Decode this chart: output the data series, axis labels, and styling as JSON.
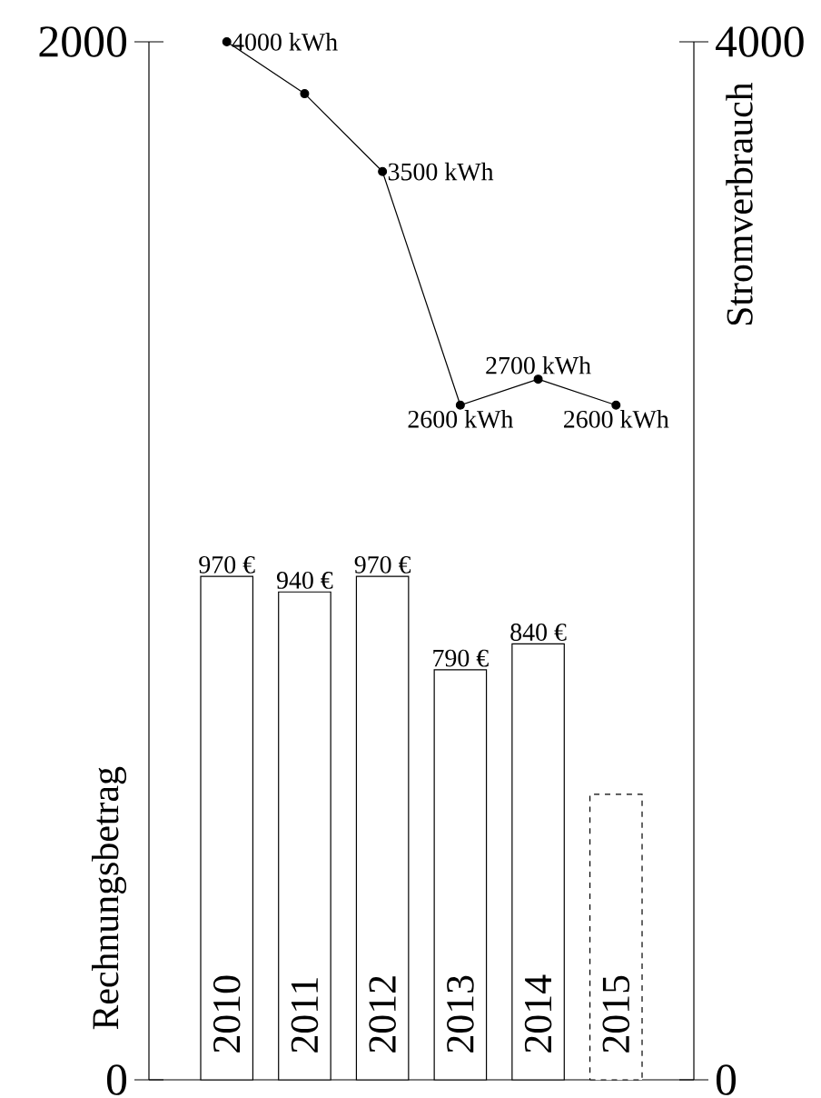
{
  "chart_data": {
    "type": "bar",
    "categories": [
      "2010",
      "2011",
      "2012",
      "2013",
      "2014",
      "2015"
    ],
    "ylabel": "Rechnungsbetrag",
    "y2label": "Stromverbrauch",
    "ylim": [
      0,
      2000
    ],
    "yticks": [
      0,
      2000
    ],
    "y2lim": [
      0,
      4000
    ],
    "y2ticks": [
      0,
      4000
    ],
    "series": [
      {
        "type": "bar",
        "color": "#ffffff",
        "values": [
          970,
          940,
          970,
          790,
          840,
          550
        ],
        "value_labels": [
          "970 €",
          "940 €",
          "970 €",
          "790 €",
          "840 €",
          null
        ]
      },
      {
        "type": "line",
        "axis": "y2",
        "color": "#000000",
        "marker": "circle",
        "values": [
          4000,
          3800,
          3500,
          2600,
          2700,
          2600
        ],
        "value_labels": [
          "4000 kWh",
          null,
          "3500 kWh",
          "2600 kWh",
          "2700 kWh",
          "2600 kWh"
        ]
      }
    ]
  }
}
